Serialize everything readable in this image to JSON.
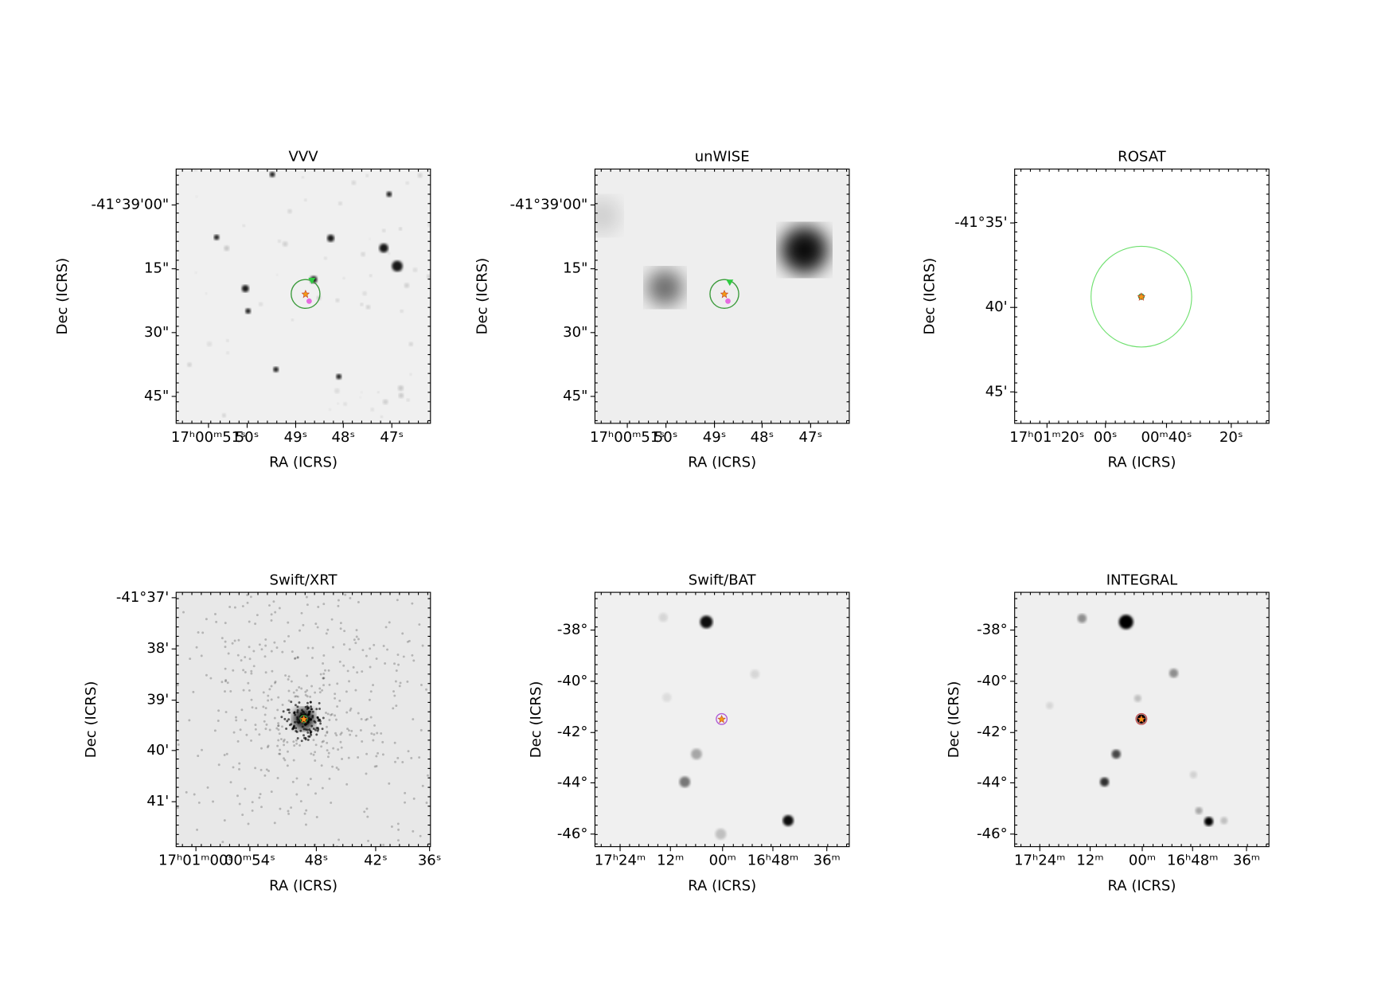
{
  "panels": [
    {
      "title": "VVV",
      "xlabel": "RA (ICRS)",
      "ylabel": "Dec (ICRS)",
      "xticks": [
        "17ʰ00ᵐ51ˢ",
        "50ˢ",
        "49ˢ",
        "48ˢ",
        "47ˢ"
      ],
      "yticks": [
        "-41°39'00\"",
        "15\"",
        "30\"",
        "45\""
      ]
    },
    {
      "title": "unWISE",
      "xlabel": "RA (ICRS)",
      "ylabel": "Dec (ICRS)",
      "xticks": [
        "17ʰ00ᵐ51ˢ",
        "50ˢ",
        "49ˢ",
        "48ˢ",
        "47ˢ"
      ],
      "yticks": [
        "-41°39'00\"",
        "15\"",
        "30\"",
        "45\""
      ]
    },
    {
      "title": "ROSAT",
      "xlabel": "RA (ICRS)",
      "ylabel": "Dec (ICRS)",
      "xticks": [
        "17ʰ01ᵐ20ˢ",
        "00ˢ",
        "00ᵐ40ˢ",
        "20ˢ"
      ],
      "yticks": [
        "-41°35'",
        "40'",
        "45'"
      ]
    },
    {
      "title": "Swift/XRT",
      "xlabel": "RA (ICRS)",
      "ylabel": "Dec (ICRS)",
      "xticks": [
        "17ʰ01ᵐ00ˢ",
        "00ᵐ54ˢ",
        "48ˢ",
        "42ˢ",
        "36ˢ"
      ],
      "yticks": [
        "-41°37'",
        "38'",
        "39'",
        "40'",
        "41'"
      ]
    },
    {
      "title": "Swift/BAT",
      "xlabel": "RA (ICRS)",
      "ylabel": "Dec (ICRS)",
      "xticks": [
        "17ʰ24ᵐ",
        "12ᵐ",
        "00ᵐ",
        "16ʰ48ᵐ",
        "36ᵐ"
      ],
      "yticks": [
        "-38°",
        "-40°",
        "-42°",
        "-44°",
        "-46°"
      ]
    },
    {
      "title": "INTEGRAL",
      "xlabel": "RA (ICRS)",
      "ylabel": "Dec (ICRS)",
      "xticks": [
        "17ʰ24ᵐ",
        "12ᵐ",
        "00ᵐ",
        "16ʰ48ᵐ",
        "36ᵐ"
      ],
      "yticks": [
        "-38°",
        "-40°",
        "-42°",
        "-44°",
        "-46°"
      ]
    }
  ]
}
